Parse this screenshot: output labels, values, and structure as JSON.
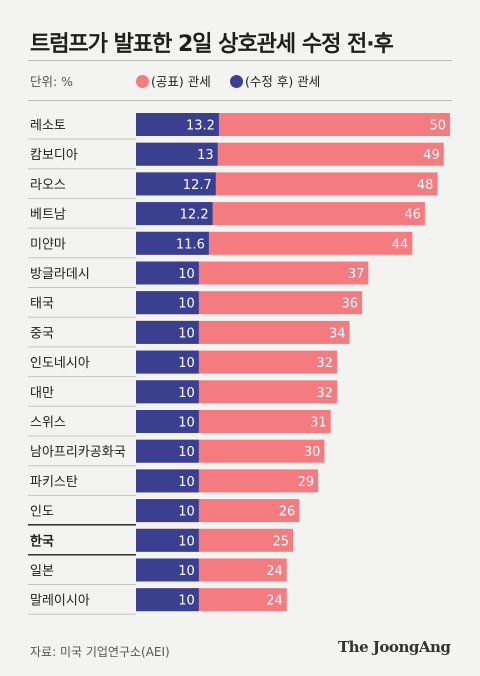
{
  "title": "트럼프가 발표한 2일 상호관세 수정 전·후",
  "unit": "단위: %",
  "source": "자료: 미국 기업연구소(AEI)",
  "brand": "The JoongAng",
  "colors": {
    "announced": "#f47c80",
    "revised": "#3a3f8f",
    "bold_row_line": "#1e1e1e"
  },
  "chart_data": {
    "type": "bar",
    "orientation": "horizontal",
    "title": "트럼프가 발표한 2일 상호관세 수정 전·후",
    "categories": [
      "레소토",
      "캄보디아",
      "라오스",
      "베트남",
      "미얀마",
      "방글라데시",
      "태국",
      "중국",
      "인도네시아",
      "대만",
      "스위스",
      "남아프리카공화국",
      "파키스탄",
      "인도",
      "한국",
      "일본",
      "말레이시아"
    ],
    "series": [
      {
        "name": "(공표) 관세",
        "values": [
          50,
          49,
          48,
          46,
          44,
          37,
          36,
          34,
          32,
          32,
          31,
          30,
          29,
          26,
          25,
          24,
          24
        ]
      },
      {
        "name": "(수정 후) 관세",
        "values": [
          13.2,
          13,
          12.7,
          12.2,
          11.6,
          10,
          10,
          10,
          10,
          10,
          10,
          10,
          10,
          10,
          10,
          10,
          10
        ]
      }
    ],
    "value_labels_announced": [
      "50",
      "49",
      "48",
      "46",
      "44",
      "37",
      "36",
      "34",
      "32",
      "32",
      "31",
      "30",
      "29",
      "26",
      "25",
      "24",
      "24"
    ],
    "value_labels_revised": [
      "13.2",
      "13",
      "12.7",
      "12.2",
      "11.6",
      "10",
      "10",
      "10",
      "10",
      "10",
      "10",
      "10",
      "10",
      "10",
      "10",
      "10",
      "10"
    ],
    "highlight_category": "한국",
    "xlim": [
      0,
      50
    ],
    "legend": "top-left",
    "grid": false
  }
}
